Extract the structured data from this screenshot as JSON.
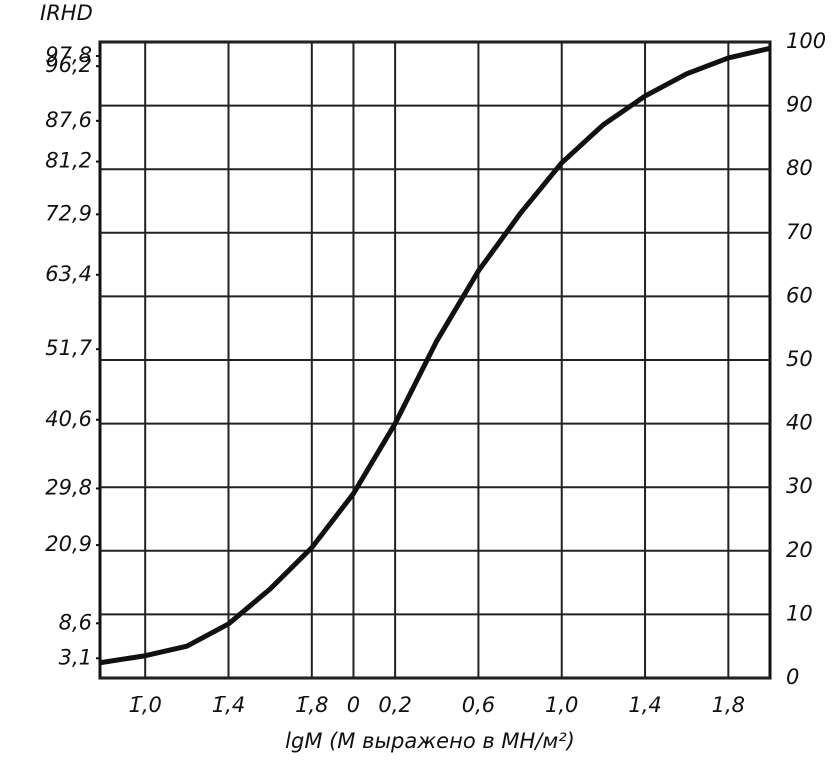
{
  "chart_data": {
    "type": "line",
    "ylabel": "IRHD",
    "xlabel": "lgM (M выражено в МН/м²)",
    "x": [
      -1.217,
      -1.0,
      -0.8,
      -0.6,
      -0.4,
      -0.2,
      0,
      0.2,
      0.4,
      0.6,
      0.8,
      1.0,
      1.2,
      1.4,
      1.6,
      1.8,
      2.0
    ],
    "series": [
      {
        "color": "#111111",
        "values": [
          2.4,
          3.5,
          5,
          8.5,
          14,
          20.5,
          29,
          40,
          53,
          64,
          73,
          81,
          87,
          91.5,
          95,
          97.5,
          99
        ]
      }
    ],
    "xlim": [
      -1.217,
      2.0
    ],
    "xticks": [
      {
        "value": -1.0,
        "label": "1̄,0"
      },
      {
        "value": -0.6,
        "label": "1̄,4"
      },
      {
        "value": -0.2,
        "label": "1̄,8"
      },
      0,
      {
        "value": 0.2,
        "label": "0,2"
      },
      {
        "value": 0.6,
        "label": "0,6"
      },
      {
        "value": 1.0,
        "label": "1,0"
      },
      {
        "value": 1.4,
        "label": "1,4"
      },
      {
        "value": 1.8,
        "label": "1,8"
      }
    ],
    "ylim": [
      0,
      100
    ],
    "yticks": [
      {
        "value": 97.8,
        "label": "97,8"
      },
      {
        "value": 96.2,
        "label": "96,2"
      },
      {
        "value": 87.6,
        "label": "87,6"
      },
      {
        "value": 81.2,
        "label": "81,2"
      },
      {
        "value": 72.9,
        "label": "72,9"
      },
      {
        "value": 63.4,
        "label": "63,4"
      },
      {
        "value": 51.7,
        "label": "51,7"
      },
      {
        "value": 40.6,
        "label": "40,6"
      },
      {
        "value": 29.8,
        "label": "29,8"
      },
      {
        "value": 20.9,
        "label": "20,9"
      },
      {
        "value": 8.6,
        "label": "8,6"
      },
      {
        "value": 3.1,
        "label": "3,1"
      }
    ],
    "y2lim": [
      0,
      100
    ],
    "y2ticks": [
      0,
      10,
      20,
      30,
      40,
      50,
      60,
      70,
      80,
      90,
      100
    ],
    "grid": true
  }
}
